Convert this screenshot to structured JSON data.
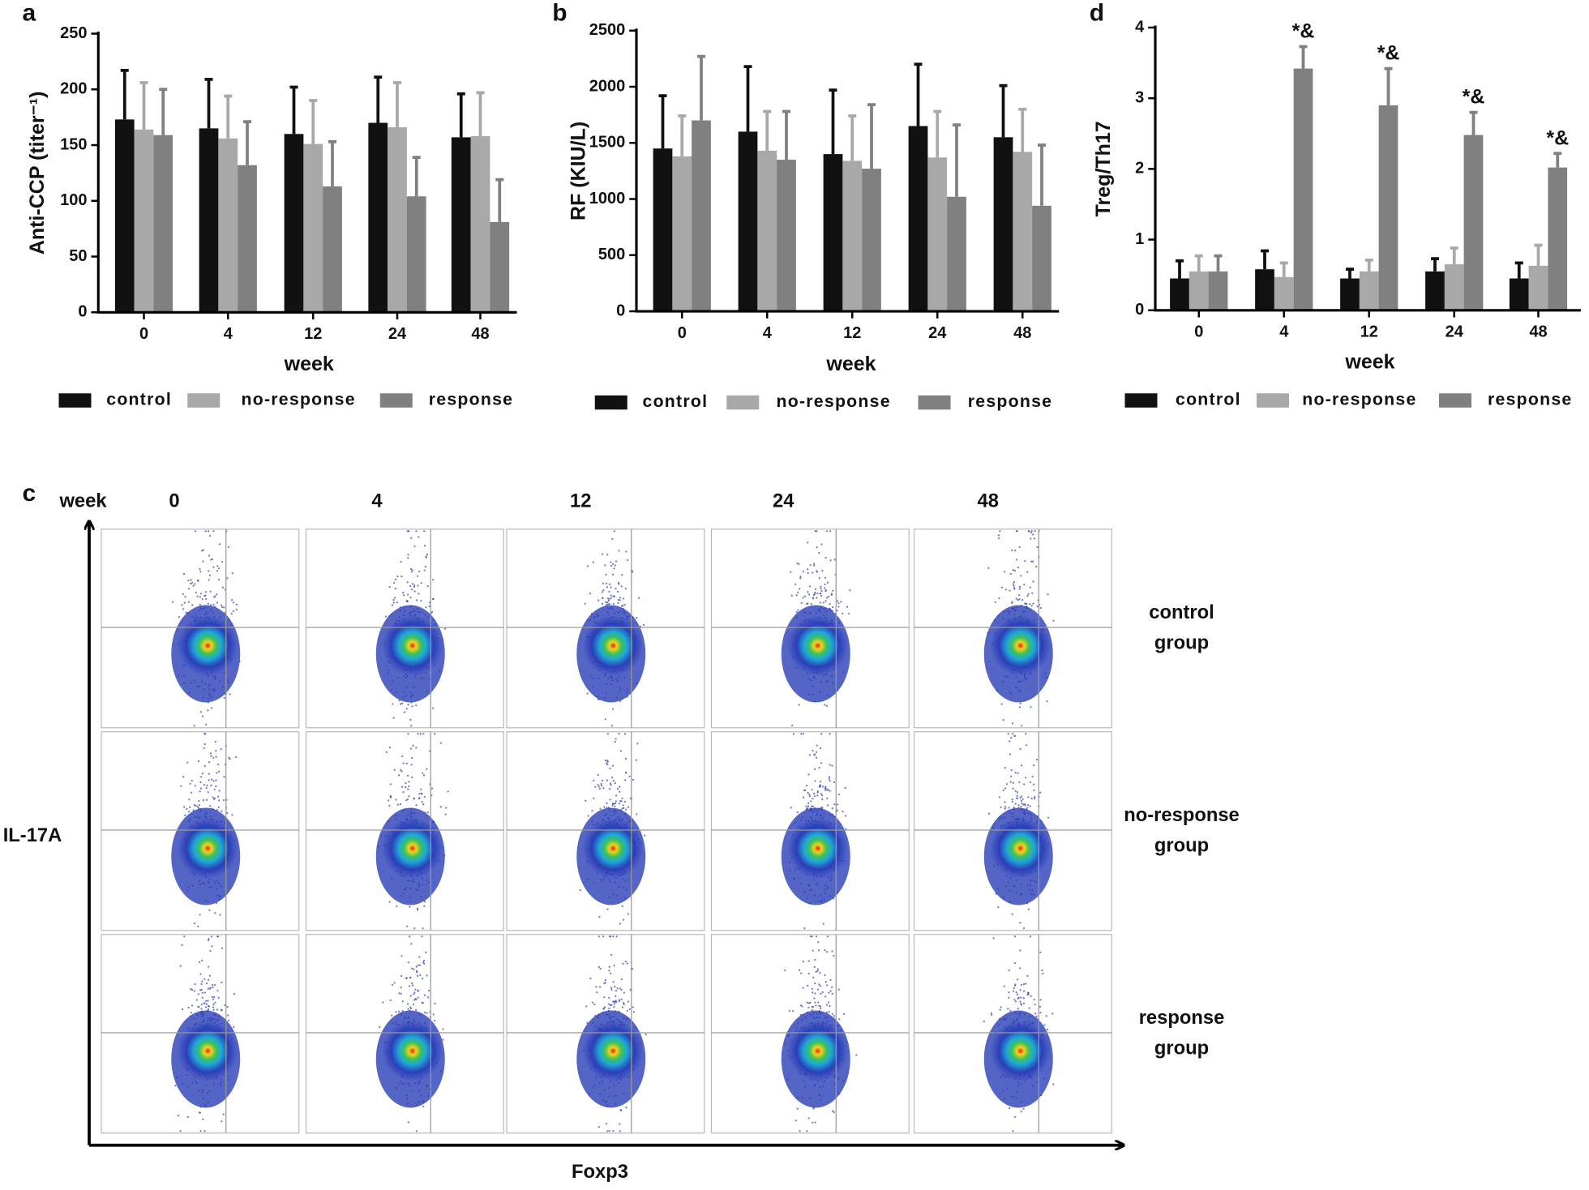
{
  "chart_data": [
    {
      "type": "bar",
      "panel": "a",
      "ylabel": "Anti-CCP (titer⁻¹)",
      "xlabel": "week",
      "categories": [
        "0",
        "4",
        "12",
        "24",
        "48"
      ],
      "ylim": [
        0,
        250
      ],
      "yticks": [
        0,
        50,
        100,
        150,
        200,
        250
      ],
      "series": [
        {
          "name": "control",
          "color": "#111111",
          "values": [
            173,
            165,
            160,
            170,
            157
          ],
          "errors": [
            44,
            44,
            42,
            41,
            39
          ]
        },
        {
          "name": "no-response",
          "color": "#a8a8a8",
          "values": [
            164,
            156,
            151,
            166,
            158
          ],
          "errors": [
            42,
            38,
            39,
            40,
            39
          ]
        },
        {
          "name": "response",
          "color": "#808080",
          "values": [
            159,
            132,
            113,
            104,
            81
          ],
          "errors": [
            41,
            39,
            40,
            35,
            38
          ]
        }
      ]
    },
    {
      "type": "bar",
      "panel": "b",
      "ylabel": "RF (KIU/L)",
      "xlabel": "week",
      "categories": [
        "0",
        "4",
        "12",
        "24",
        "48"
      ],
      "ylim": [
        0,
        2500
      ],
      "yticks": [
        0,
        500,
        1000,
        1500,
        2000,
        2500
      ],
      "series": [
        {
          "name": "control",
          "color": "#111111",
          "values": [
            1450,
            1600,
            1400,
            1650,
            1550
          ],
          "errors": [
            470,
            580,
            570,
            550,
            460
          ]
        },
        {
          "name": "no-response",
          "color": "#a8a8a8",
          "values": [
            1380,
            1430,
            1340,
            1370,
            1420
          ],
          "errors": [
            360,
            350,
            400,
            410,
            380
          ]
        },
        {
          "name": "response",
          "color": "#808080",
          "values": [
            1700,
            1350,
            1270,
            1020,
            940
          ],
          "errors": [
            570,
            430,
            570,
            640,
            540
          ]
        }
      ]
    },
    {
      "type": "bar",
      "panel": "d",
      "ylabel": "Treg/Th17",
      "xlabel": "week",
      "categories": [
        "0",
        "4",
        "12",
        "24",
        "48"
      ],
      "ylim": [
        0,
        4
      ],
      "yticks": [
        0,
        1,
        2,
        3,
        4
      ],
      "series": [
        {
          "name": "control",
          "color": "#111111",
          "values": [
            0.45,
            0.58,
            0.45,
            0.55,
            0.45
          ],
          "errors": [
            0.25,
            0.26,
            0.13,
            0.18,
            0.22
          ]
        },
        {
          "name": "no-response",
          "color": "#a8a8a8",
          "values": [
            0.55,
            0.47,
            0.55,
            0.65,
            0.63
          ],
          "errors": [
            0.22,
            0.2,
            0.16,
            0.23,
            0.29
          ]
        },
        {
          "name": "response",
          "color": "#808080",
          "values": [
            0.55,
            3.42,
            2.9,
            2.48,
            2.02
          ],
          "errors": [
            0.22,
            0.31,
            0.52,
            0.32,
            0.2
          ],
          "annotations": [
            null,
            "*&",
            "*&",
            "*&",
            "*&"
          ]
        }
      ]
    }
  ],
  "panel_c": {
    "panel": "c",
    "column_header": "week",
    "columns": [
      "0",
      "4",
      "12",
      "24",
      "48"
    ],
    "rows": [
      [
        "control",
        "group"
      ],
      [
        "no-response",
        "group"
      ],
      [
        "response",
        "group"
      ]
    ],
    "y_axis": "IL-17A",
    "x_axis": "Foxp3"
  }
}
